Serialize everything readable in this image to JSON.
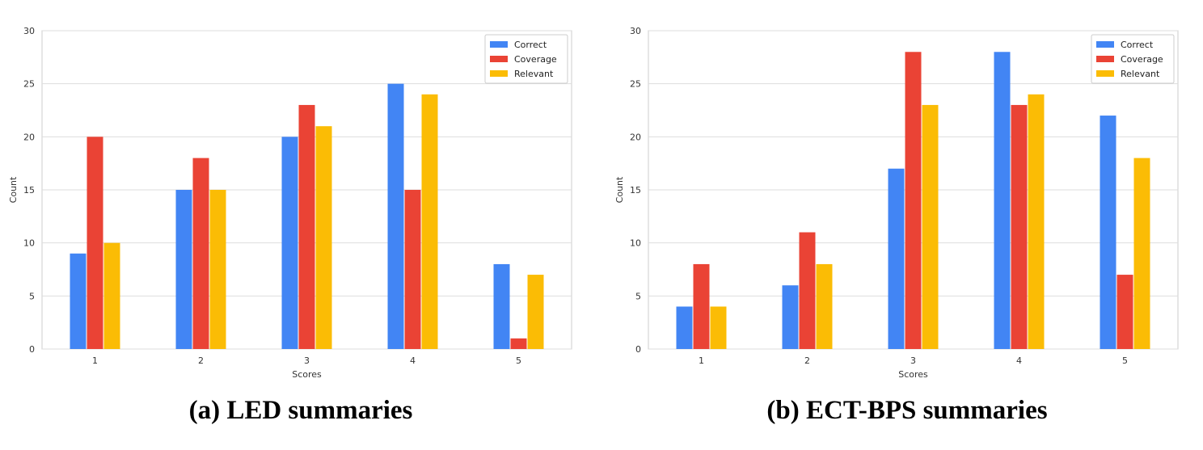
{
  "colors": {
    "Correct": "#4285F4",
    "Coverage": "#EA4335",
    "Relevant": "#FBBC05"
  },
  "chart_data": [
    {
      "type": "bar",
      "categories": [
        "1",
        "2",
        "3",
        "4",
        "5"
      ],
      "series": [
        {
          "name": "Correct",
          "values": [
            9,
            15,
            20,
            25,
            8
          ]
        },
        {
          "name": "Coverage",
          "values": [
            20,
            18,
            23,
            15,
            1
          ]
        },
        {
          "name": "Relevant",
          "values": [
            10,
            15,
            21,
            24,
            7
          ]
        }
      ],
      "xlabel": "Scores",
      "ylabel": "Count",
      "ylim": [
        0,
        30
      ],
      "yticks": [
        "0",
        "5",
        "10",
        "15",
        "20",
        "25",
        "30"
      ],
      "grid": true,
      "legend_position": "top-right",
      "caption": "(a) LED summaries"
    },
    {
      "type": "bar",
      "categories": [
        "1",
        "2",
        "3",
        "4",
        "5"
      ],
      "series": [
        {
          "name": "Correct",
          "values": [
            4,
            6,
            17,
            28,
            22
          ]
        },
        {
          "name": "Coverage",
          "values": [
            8,
            11,
            28,
            23,
            7
          ]
        },
        {
          "name": "Relevant",
          "values": [
            4,
            8,
            23,
            24,
            18
          ]
        }
      ],
      "xlabel": "Scores",
      "ylabel": "Count",
      "ylim": [
        0,
        30
      ],
      "yticks": [
        "0",
        "5",
        "10",
        "15",
        "20",
        "25",
        "30"
      ],
      "grid": true,
      "legend_position": "top-right",
      "caption": "(b) ECT-BPS summaries"
    }
  ]
}
